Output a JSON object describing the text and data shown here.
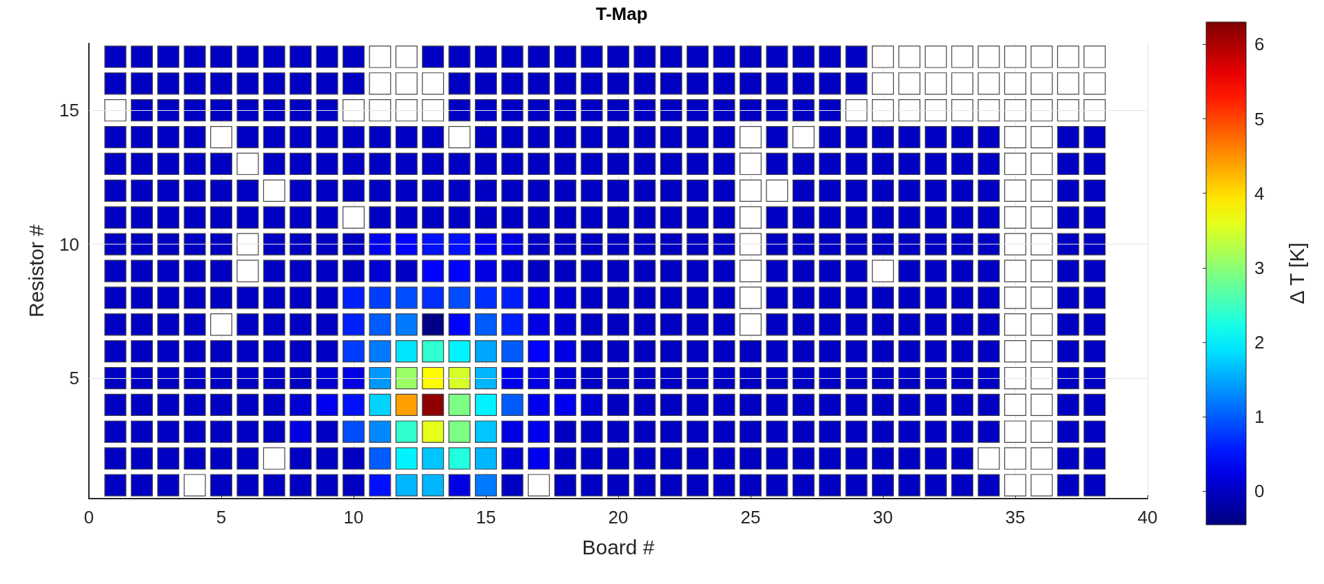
{
  "chart_data": {
    "type": "heatmap",
    "title": "T-Map",
    "xlabel": "Board #",
    "ylabel": "Resistor #",
    "clabel": "Δ T [K]",
    "x": [
      1,
      2,
      3,
      4,
      5,
      6,
      7,
      8,
      9,
      10,
      11,
      12,
      13,
      14,
      15,
      16,
      17,
      18,
      19,
      20,
      21,
      22,
      23,
      24,
      25,
      26,
      27,
      28,
      29,
      30,
      31,
      32,
      33,
      34,
      35,
      36,
      37,
      38
    ],
    "y_categories": [
      null,
      null,
      "15",
      null,
      null,
      null,
      null,
      "10",
      null,
      null,
      null,
      null,
      "5",
      null,
      null,
      null,
      null
    ],
    "cells": [
      [
        0,
        0,
        0,
        0,
        0,
        0,
        0,
        0,
        0,
        0,
        null,
        null,
        0,
        0,
        0,
        0,
        0,
        0,
        0,
        0,
        0,
        0,
        0,
        0,
        0,
        0,
        0,
        0,
        0,
        null,
        null,
        null,
        null,
        null,
        null,
        null,
        null,
        null
      ],
      [
        0,
        0,
        0,
        0,
        0,
        0,
        0,
        0,
        0,
        0,
        null,
        null,
        null,
        0,
        0,
        0,
        0,
        0,
        0,
        0,
        0,
        0,
        0,
        0,
        0,
        0,
        0,
        0,
        0,
        null,
        null,
        null,
        null,
        null,
        null,
        null,
        null,
        null
      ],
      [
        null,
        0,
        0,
        0,
        0,
        0,
        0,
        0,
        0,
        null,
        null,
        null,
        null,
        0,
        0,
        0,
        0,
        0,
        0,
        0,
        0,
        0,
        0,
        0,
        0,
        0,
        0,
        0,
        null,
        null,
        null,
        null,
        null,
        null,
        null,
        null,
        null,
        null
      ],
      [
        0,
        0,
        0,
        0,
        null,
        0,
        0,
        0,
        0,
        0,
        0,
        0,
        0,
        null,
        0,
        0,
        0,
        0,
        0,
        0,
        0,
        0,
        0,
        0,
        null,
        0,
        null,
        0,
        0,
        0,
        0,
        0,
        0,
        0,
        null,
        null,
        0,
        0
      ],
      [
        0,
        0,
        0,
        0,
        0,
        null,
        0,
        0,
        0,
        0,
        0,
        0,
        0,
        0,
        0,
        0,
        0,
        0,
        0,
        0,
        0,
        0,
        0,
        0,
        null,
        0,
        0,
        0,
        0,
        0,
        0,
        0,
        0,
        0,
        null,
        null,
        0,
        0
      ],
      [
        0,
        0,
        0,
        0,
        0,
        0,
        null,
        0,
        0,
        0,
        0,
        0,
        0,
        0,
        0,
        0,
        0,
        0,
        0,
        0,
        0,
        0,
        0,
        0,
        null,
        null,
        0,
        0,
        0,
        0,
        0,
        0,
        0,
        0,
        null,
        null,
        0,
        0
      ],
      [
        0,
        0,
        0,
        0,
        0,
        0,
        0,
        0,
        0,
        null,
        0,
        0,
        0,
        0,
        0,
        0,
        0,
        0,
        0,
        0,
        0,
        0,
        0,
        0,
        null,
        0,
        0,
        0,
        0,
        0,
        0,
        0,
        0,
        0,
        null,
        null,
        0,
        0
      ],
      [
        0,
        0,
        0,
        0,
        0,
        null,
        0,
        0,
        0,
        0,
        0.3,
        0.4,
        0.5,
        0.5,
        0.3,
        0.2,
        0,
        0,
        0,
        0,
        0,
        0,
        0,
        0,
        null,
        0,
        0,
        0,
        0,
        0,
        0,
        0,
        0,
        0,
        null,
        null,
        0,
        0
      ],
      [
        0,
        0,
        0,
        0,
        0,
        null,
        0,
        0,
        0,
        0,
        0.1,
        0,
        0.4,
        0.4,
        0.2,
        0.1,
        0,
        0,
        0,
        0,
        0,
        0,
        0,
        0,
        null,
        0,
        0,
        0,
        0,
        null,
        0,
        0,
        0,
        0,
        null,
        null,
        0,
        0
      ],
      [
        0,
        0,
        0,
        0,
        0,
        0,
        0,
        0,
        0,
        0.6,
        0.8,
        0.9,
        0.7,
        0.9,
        0.7,
        0.6,
        0.2,
        0.1,
        0,
        0,
        0,
        0,
        0,
        0,
        null,
        0,
        0,
        0,
        0,
        0,
        0,
        0,
        0,
        0,
        null,
        null,
        0,
        0
      ],
      [
        0,
        0,
        0,
        0,
        null,
        0,
        0,
        0,
        0,
        0.6,
        1.0,
        1.2,
        -0.4,
        0.4,
        1.0,
        0.6,
        0.2,
        0.1,
        0,
        0,
        0,
        0,
        0,
        0,
        null,
        0,
        0,
        0,
        0,
        0,
        0,
        0,
        0,
        0,
        null,
        null,
        0,
        0
      ],
      [
        0,
        0,
        0,
        0,
        0,
        0,
        0,
        0,
        0,
        0.8,
        1.2,
        1.9,
        2.4,
        2.0,
        1.5,
        1.0,
        0.4,
        0.2,
        0,
        0,
        0,
        0,
        0,
        0,
        0,
        0,
        0,
        0,
        0,
        0,
        0,
        0,
        0,
        0,
        null,
        null,
        0,
        0
      ],
      [
        0,
        0,
        0,
        0,
        0,
        0,
        0,
        0,
        0.1,
        0.2,
        1.4,
        3.1,
        3.8,
        3.5,
        1.6,
        0.3,
        0.2,
        0.1,
        0,
        0,
        0,
        0,
        0,
        0,
        0,
        0,
        0,
        0,
        0,
        0,
        0,
        0,
        0,
        0,
        null,
        null,
        0,
        0
      ],
      [
        0,
        0,
        0,
        0,
        0,
        0,
        0,
        0.1,
        0.3,
        0.5,
        1.8,
        4.4,
        6.2,
        2.9,
        2.0,
        1.0,
        0.3,
        0.3,
        0.1,
        0,
        0,
        0,
        0,
        0,
        0,
        0,
        0,
        0,
        0,
        0,
        0,
        0,
        0,
        0,
        null,
        null,
        0,
        0
      ],
      [
        0,
        0,
        0,
        0,
        0,
        0,
        0,
        0.2,
        0,
        0.9,
        1.3,
        2.4,
        3.6,
        2.9,
        1.7,
        0.2,
        0.3,
        0,
        0,
        0,
        0,
        0,
        0,
        0,
        0,
        0,
        0,
        0,
        0,
        0,
        0,
        0,
        0,
        0,
        null,
        null,
        0,
        0
      ],
      [
        0,
        0,
        0,
        0,
        0,
        0,
        null,
        0,
        0,
        0,
        1.0,
        2.0,
        1.7,
        2.3,
        1.6,
        0.1,
        0.3,
        0,
        0,
        0,
        0,
        0,
        0,
        0,
        0,
        0,
        0,
        0,
        0,
        0,
        0,
        0,
        0,
        null,
        null,
        null,
        0,
        0
      ],
      [
        0,
        0,
        0,
        null,
        0,
        0,
        0,
        0,
        0,
        0,
        0.5,
        1.6,
        1.6,
        0.2,
        1.2,
        0,
        null,
        0,
        0,
        0,
        0,
        0,
        0,
        0,
        0,
        0,
        0,
        0,
        0,
        0,
        0,
        0,
        0,
        0,
        null,
        null,
        0,
        0
      ]
    ],
    "xlim": [
      0,
      40
    ],
    "xticks": [
      0,
      5,
      10,
      15,
      20,
      25,
      30,
      35,
      40
    ],
    "clim": [
      -0.45,
      6.3
    ],
    "cticks": [
      0,
      1,
      2,
      3,
      4,
      5,
      6
    ],
    "grid": true
  }
}
